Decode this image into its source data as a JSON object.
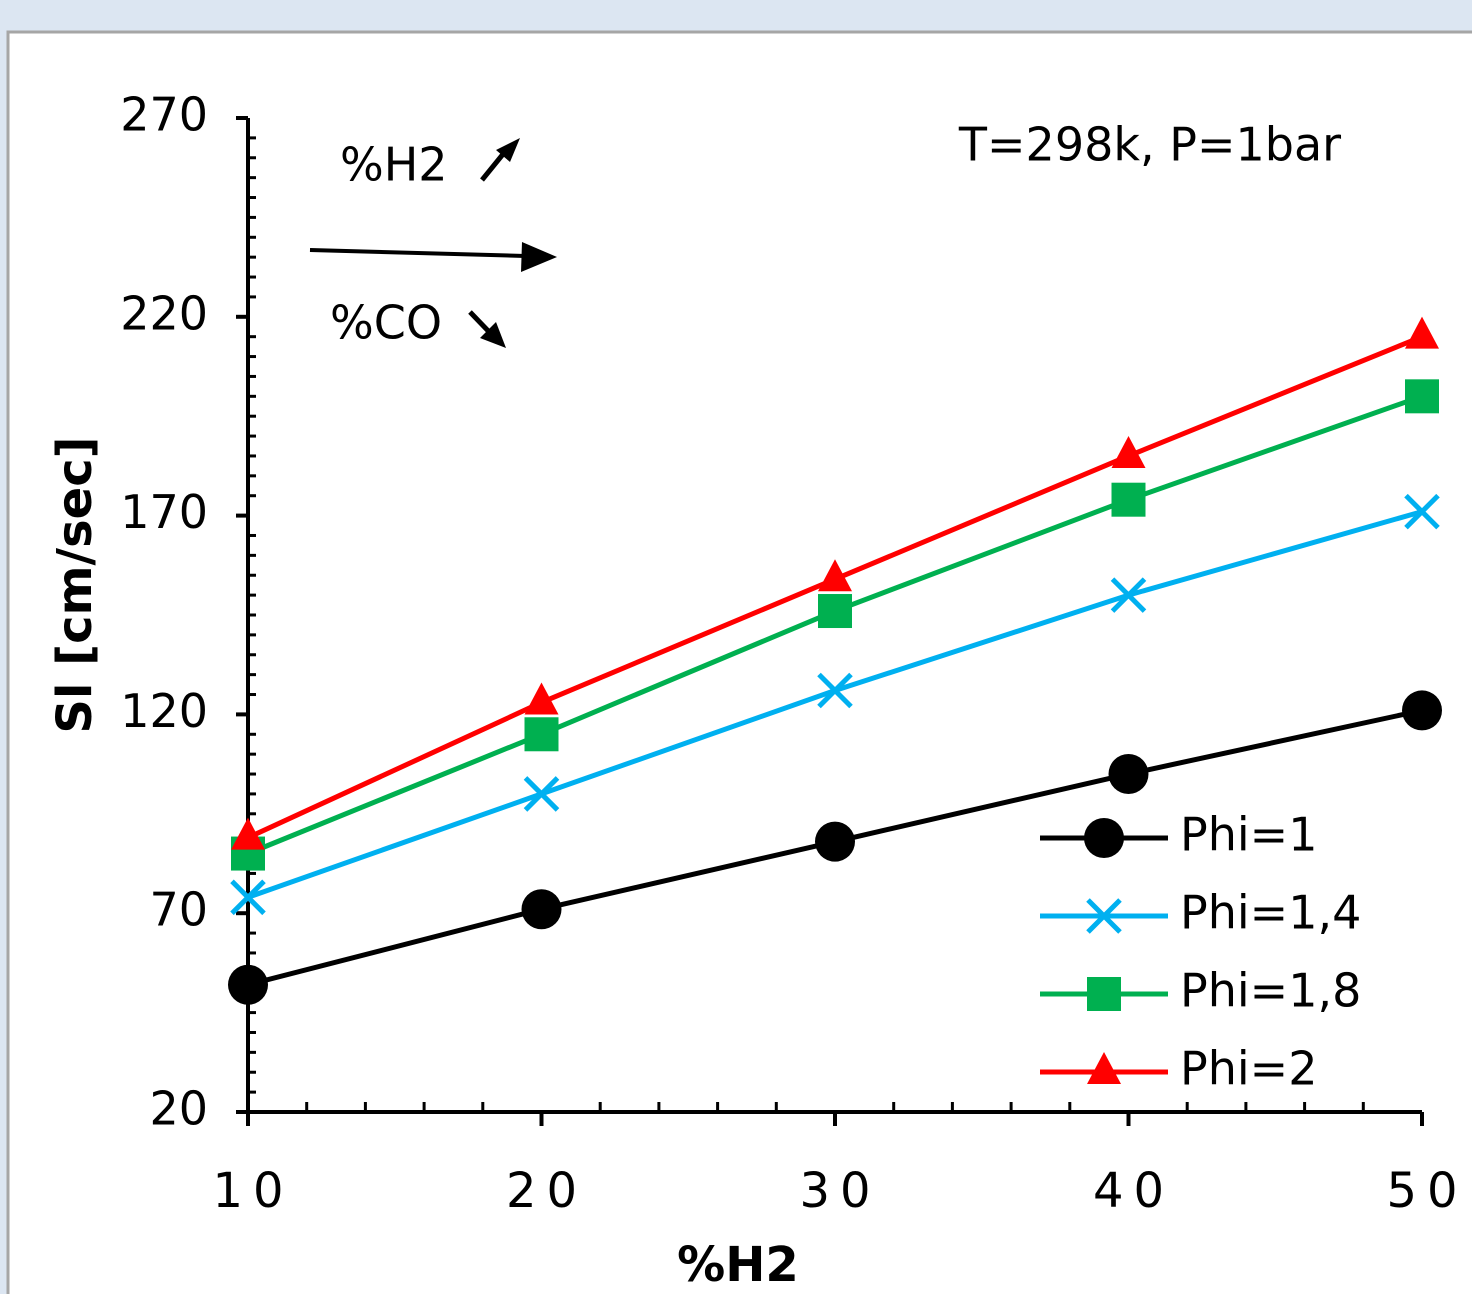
{
  "chart_data": {
    "type": "line",
    "x_label": "%H2",
    "y_label": "Sl [cm/sec]",
    "annotations": [
      "T=298k, P=1bar",
      "%H2",
      "%CO"
    ],
    "x": [
      10,
      20,
      30,
      40,
      50
    ],
    "series": [
      {
        "name": "Phi=1",
        "color": "#000000",
        "marker": "circle",
        "values": [
          52,
          71,
          88,
          105,
          121
        ]
      },
      {
        "name": "Phi=1,4",
        "color": "#00b0f0",
        "marker": "x",
        "values": [
          74,
          100,
          126,
          150,
          171
        ]
      },
      {
        "name": "Phi=1,8",
        "color": "#00b050",
        "marker": "square",
        "values": [
          85,
          115,
          146,
          174,
          200
        ]
      },
      {
        "name": "Phi=2",
        "color": "#ff0000",
        "marker": "triangle",
        "values": [
          89,
          123,
          154,
          185,
          215
        ]
      }
    ],
    "xlim": [
      10,
      50
    ],
    "xticks": [
      10,
      20,
      30,
      40,
      50
    ],
    "ylim": [
      20,
      270
    ],
    "yticks": [
      20,
      70,
      120,
      170,
      220,
      270
    ],
    "legend": "lower right"
  }
}
